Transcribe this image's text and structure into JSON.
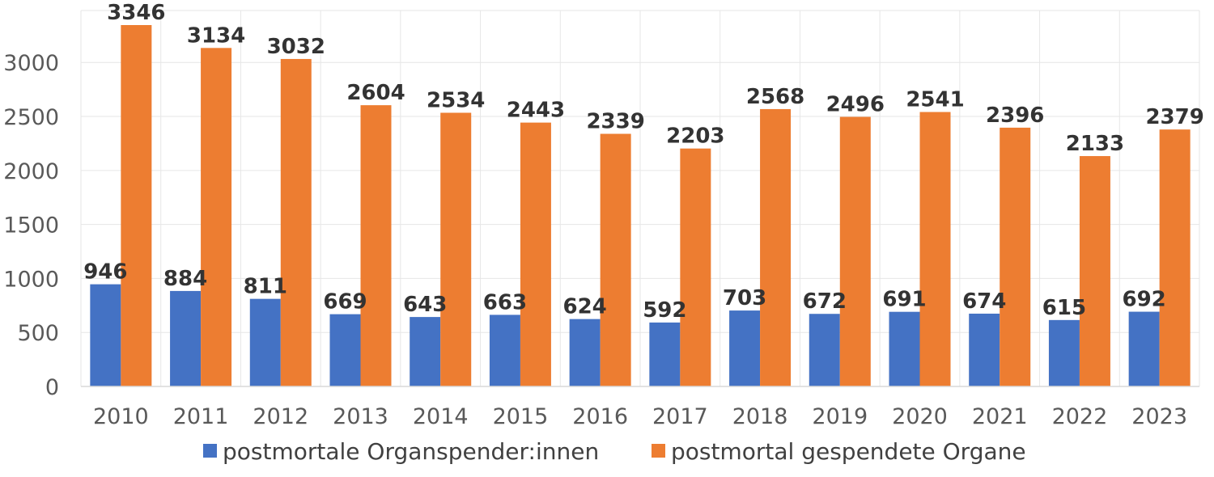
{
  "chart_data": {
    "type": "bar",
    "title": "",
    "xlabel": "",
    "ylabel": "",
    "categories": [
      "2010",
      "2011",
      "2012",
      "2013",
      "2014",
      "2015",
      "2016",
      "2017",
      "2018",
      "2019",
      "2020",
      "2021",
      "2022",
      "2023"
    ],
    "series": [
      {
        "name": "postmortale Organspender:innen",
        "color": "#4472C4",
        "values": [
          946,
          884,
          811,
          669,
          643,
          663,
          624,
          592,
          703,
          672,
          691,
          674,
          615,
          692
        ]
      },
      {
        "name": "postmortal gespendete Organe",
        "color": "#ED7D31",
        "values": [
          3346,
          3134,
          3032,
          2604,
          2534,
          2443,
          2339,
          2203,
          2568,
          2496,
          2541,
          2396,
          2133,
          2379
        ]
      }
    ],
    "ylim": [
      0,
      3346
    ],
    "yticks": [
      0,
      500,
      1000,
      1500,
      2000,
      2500,
      3000
    ],
    "grid": true,
    "legend_position": "bottom",
    "data_labels": true
  }
}
